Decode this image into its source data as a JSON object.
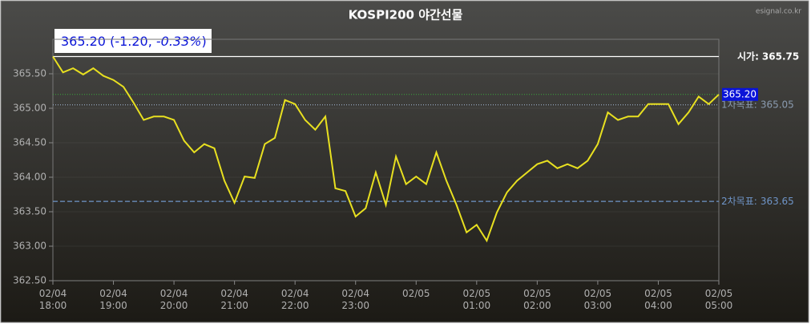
{
  "chart_data": {
    "type": "line",
    "title": "KOSPI200 야간선물",
    "watermark": "esignal.co.kr",
    "quote_text": "365.20 (-1.20, ",
    "quote_pct": "-0.33%",
    "quote_close": ")",
    "x": [
      "02/04 18:00",
      "02/04 18:10",
      "02/04 18:20",
      "02/04 18:30",
      "02/04 18:40",
      "02/04 18:50",
      "02/04 19:00",
      "02/04 19:10",
      "02/04 19:20",
      "02/04 19:30",
      "02/04 19:40",
      "02/04 19:50",
      "02/04 20:00",
      "02/04 20:10",
      "02/04 20:20",
      "02/04 20:30",
      "02/04 20:40",
      "02/04 20:50",
      "02/04 21:00",
      "02/04 21:10",
      "02/04 21:20",
      "02/04 21:30",
      "02/04 21:40",
      "02/04 21:50",
      "02/04 22:00",
      "02/04 22:10",
      "02/04 22:20",
      "02/04 22:30",
      "02/04 22:40",
      "02/04 22:50",
      "02/04 23:00",
      "02/04 23:10",
      "02/04 23:20",
      "02/04 23:30",
      "02/04 23:40",
      "02/04 23:50",
      "02/05 00:00",
      "02/05 00:10",
      "02/05 00:20",
      "02/05 00:30",
      "02/05 00:40",
      "02/05 00:50",
      "02/05 01:00",
      "02/05 01:10",
      "02/05 01:20",
      "02/05 01:30",
      "02/05 01:40",
      "02/05 01:50",
      "02/05 02:00",
      "02/05 02:10",
      "02/05 02:20",
      "02/05 02:30",
      "02/05 02:40",
      "02/05 02:50",
      "02/05 03:00",
      "02/05 03:10",
      "02/05 03:20",
      "02/05 03:30",
      "02/05 03:40",
      "02/05 03:50",
      "02/05 04:00",
      "02/05 04:10",
      "02/05 04:20",
      "02/05 04:30",
      "02/05 04:40",
      "02/05 04:50",
      "02/05 05:00"
    ],
    "series": [
      {
        "name": "KOSPI200",
        "color": "#e8e020",
        "values": [
          365.75,
          365.52,
          365.58,
          365.49,
          365.58,
          365.47,
          365.41,
          365.31,
          365.08,
          364.83,
          364.88,
          364.88,
          364.83,
          364.53,
          364.36,
          364.48,
          364.42,
          363.95,
          363.63,
          364.01,
          363.99,
          364.48,
          364.57,
          365.12,
          365.06,
          364.83,
          364.69,
          364.88,
          363.84,
          363.8,
          363.43,
          363.55,
          364.07,
          363.6,
          364.3,
          363.9,
          364.01,
          363.9,
          364.36,
          363.95,
          363.6,
          363.2,
          363.31,
          363.08,
          363.49,
          363.78,
          363.95,
          364.07,
          364.19,
          364.24,
          364.13,
          364.19,
          364.13,
          364.24,
          364.48,
          364.94,
          364.83,
          364.88,
          364.88,
          365.06,
          365.06,
          365.06,
          364.77,
          364.94,
          365.17,
          365.06,
          365.2
        ]
      }
    ],
    "xlim": [
      "02/04 18:00",
      "02/05 05:00"
    ],
    "xticks": [
      {
        "value": "02/04 18:00",
        "label": "02/04 18:00"
      },
      {
        "value": "02/04 19:00",
        "label": "02/04 19:00"
      },
      {
        "value": "02/04 20:00",
        "label": "02/04 20:00"
      },
      {
        "value": "02/04 21:00",
        "label": "02/04 21:00"
      },
      {
        "value": "02/04 22:00",
        "label": "02/04 22:00"
      },
      {
        "value": "02/04 23:00",
        "label": "02/04 23:00"
      },
      {
        "value": "02/05 00:00",
        "label": "02/05"
      },
      {
        "value": "02/05 01:00",
        "label": "02/05 01:00"
      },
      {
        "value": "02/05 02:00",
        "label": "02/05 02:00"
      },
      {
        "value": "02/05 03:00",
        "label": "02/05 03:00"
      },
      {
        "value": "02/05 04:00",
        "label": "02/05 04:00"
      },
      {
        "value": "02/05 05:00",
        "label": "02/05 05:00"
      }
    ],
    "ylim": [
      362.5,
      366
    ],
    "yticks": [
      {
        "value": 362.5,
        "label": "362.50"
      },
      {
        "value": 363,
        "label": "363.00"
      },
      {
        "value": 363.5,
        "label": "363.50"
      },
      {
        "value": 364,
        "label": "364.00"
      },
      {
        "value": 364.5,
        "label": "364.50"
      },
      {
        "value": 365,
        "label": "365.00"
      },
      {
        "value": 365.5,
        "label": "365.50"
      }
    ],
    "reference_lines": [
      {
        "label": "시가:",
        "value": 365.75,
        "color": "#ffffff",
        "style": "solid"
      },
      {
        "label": "1차목표:",
        "value": 365.05,
        "color": "#8a9bb0",
        "style": "dotted"
      },
      {
        "label": "2차목표:",
        "value": 363.65,
        "color": "#6f95c8",
        "style": "dashed"
      }
    ],
    "current": {
      "value": 365.2,
      "label": "365.20",
      "color": "#0a14d8"
    }
  }
}
